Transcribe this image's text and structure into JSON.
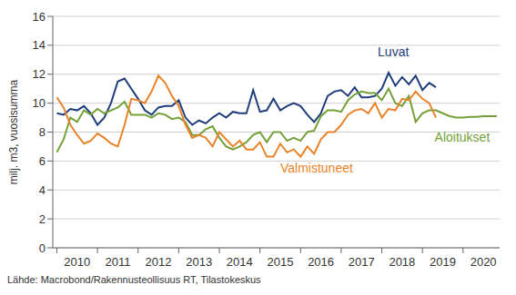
{
  "chart_data": {
    "type": "line",
    "y_label": "milj. m3, vuosisumma",
    "source": "Lähde: Macrobond/Rakennusteollisuus RT, Tilastokeskus",
    "x": [
      2010,
      2010.167,
      2010.333,
      2010.5,
      2010.667,
      2010.833,
      2011,
      2011.167,
      2011.333,
      2011.5,
      2011.667,
      2011.833,
      2012,
      2012.167,
      2012.333,
      2012.5,
      2012.667,
      2012.833,
      2013,
      2013.167,
      2013.333,
      2013.5,
      2013.667,
      2013.833,
      2014,
      2014.167,
      2014.333,
      2014.5,
      2014.667,
      2014.833,
      2015,
      2015.167,
      2015.333,
      2015.5,
      2015.667,
      2015.833,
      2016,
      2016.167,
      2016.333,
      2016.5,
      2016.667,
      2016.833,
      2017,
      2017.167,
      2017.333,
      2017.5,
      2017.667,
      2017.833,
      2018,
      2018.167,
      2018.333,
      2018.5,
      2018.667,
      2018.833,
      2019,
      2019.167,
      2019.333,
      2019.5,
      2019.667,
      2019.833,
      2020,
      2020.167,
      2020.333,
      2020.5,
      2020.667,
      2020.833
    ],
    "series": [
      {
        "name": "Luvat",
        "color": "#1f3d7a",
        "values": [
          9.3,
          9.2,
          9.6,
          9.5,
          9.8,
          9.3,
          8.5,
          9.0,
          10.0,
          11.5,
          11.7,
          11.0,
          10.3,
          9.5,
          9.2,
          9.7,
          9.8,
          9.8,
          10.2,
          9.0,
          8.5,
          8.8,
          8.6,
          9.0,
          9.3,
          9.0,
          9.4,
          9.3,
          9.3,
          10.9,
          9.4,
          9.5,
          10.3,
          9.5,
          9.8,
          10.0,
          9.8,
          9.2,
          8.7,
          9.3,
          10.5,
          10.8,
          10.9,
          10.5,
          11.1,
          10.4,
          10.4,
          10.5,
          11.0,
          12.1,
          11.2,
          11.8,
          11.3,
          11.9,
          10.9,
          11.4,
          11.1,
          null,
          null,
          null,
          null,
          null,
          null,
          null,
          null,
          null
        ]
      },
      {
        "name": "Aloitukset",
        "color": "#74a03a",
        "values": [
          6.6,
          7.5,
          9.0,
          8.7,
          9.5,
          9.2,
          9.6,
          9.3,
          9.5,
          9.7,
          10.1,
          9.2,
          9.2,
          9.2,
          9.0,
          9.3,
          9.2,
          8.9,
          9.0,
          8.7,
          7.8,
          7.8,
          8.2,
          8.4,
          7.6,
          7.0,
          6.8,
          7.0,
          7.3,
          7.8,
          8.0,
          7.3,
          8.0,
          8.0,
          7.4,
          7.6,
          7.4,
          8.0,
          8.1,
          9.1,
          9.5,
          9.5,
          9.4,
          10.2,
          10.6,
          10.8,
          10.7,
          10.7,
          10.2,
          11.0,
          10.0,
          9.8,
          10.5,
          8.7,
          9.3,
          9.5,
          9.5,
          9.3,
          9.1,
          9.0,
          9.0,
          9.05,
          9.05,
          9.1,
          9.1,
          9.1
        ]
      },
      {
        "name": "Valmistuneet",
        "color": "#e8832a",
        "values": [
          10.4,
          9.7,
          8.5,
          7.8,
          7.2,
          7.4,
          7.9,
          7.6,
          7.2,
          7.0,
          8.5,
          10.3,
          10.2,
          10.0,
          10.8,
          11.9,
          11.4,
          10.5,
          9.8,
          8.5,
          7.6,
          7.8,
          7.6,
          7.0,
          8.0,
          7.5,
          7.0,
          7.4,
          6.8,
          6.8,
          7.3,
          6.3,
          6.3,
          7.2,
          6.6,
          6.8,
          6.3,
          7.0,
          6.5,
          7.5,
          8.0,
          8.0,
          8.5,
          9.2,
          9.5,
          9.6,
          9.3,
          10.0,
          9.0,
          9.6,
          9.5,
          10.3,
          10.2,
          10.8,
          10.3,
          10.0,
          9.0,
          null,
          null,
          null,
          null,
          null,
          null,
          null,
          null,
          null
        ]
      }
    ],
    "xlim": [
      2009.9,
      2020.9
    ],
    "xticks": [
      2010,
      2011,
      2012,
      2013,
      2014,
      2015,
      2016,
      2017,
      2018,
      2019,
      2020
    ],
    "ylim": [
      0,
      16
    ],
    "yticks": [
      0,
      2,
      4,
      6,
      8,
      10,
      12,
      14,
      16
    ],
    "grid": true
  }
}
